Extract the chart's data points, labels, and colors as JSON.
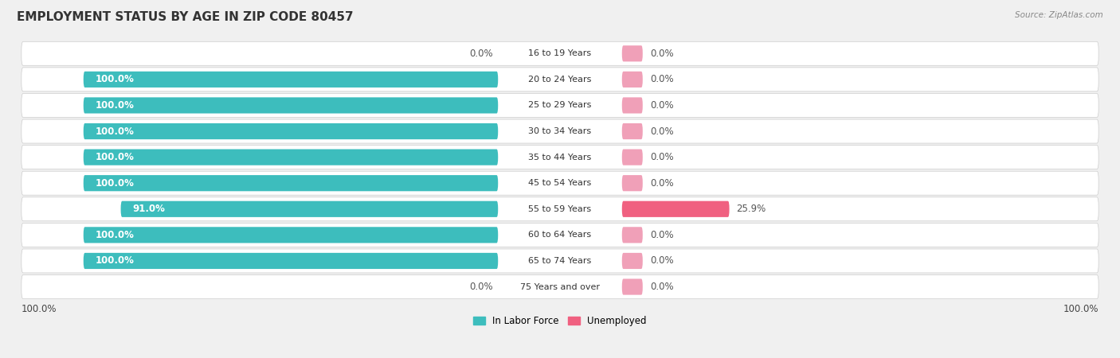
{
  "title": "EMPLOYMENT STATUS BY AGE IN ZIP CODE 80457",
  "source": "Source: ZipAtlas.com",
  "categories": [
    "16 to 19 Years",
    "20 to 24 Years",
    "25 to 29 Years",
    "30 to 34 Years",
    "35 to 44 Years",
    "45 to 54 Years",
    "55 to 59 Years",
    "60 to 64 Years",
    "65 to 74 Years",
    "75 Years and over"
  ],
  "in_labor_force": [
    0.0,
    100.0,
    100.0,
    100.0,
    100.0,
    100.0,
    91.0,
    100.0,
    100.0,
    0.0
  ],
  "unemployed": [
    0.0,
    0.0,
    0.0,
    0.0,
    0.0,
    0.0,
    25.9,
    0.0,
    0.0,
    0.0
  ],
  "labor_color": "#3dbdbd",
  "unemployed_color_strong": "#f06080",
  "unemployed_color_light": "#f0a0b8",
  "row_bg_color": "#ffffff",
  "row_border_color": "#dddddd",
  "title_fontsize": 11,
  "label_fontsize": 8.5,
  "max_value": 100.0,
  "x_left_label": "100.0%",
  "x_right_label": "100.0%",
  "legend_labor": "In Labor Force",
  "legend_unemployed": "Unemployed",
  "fig_bg": "#f0f0f0"
}
